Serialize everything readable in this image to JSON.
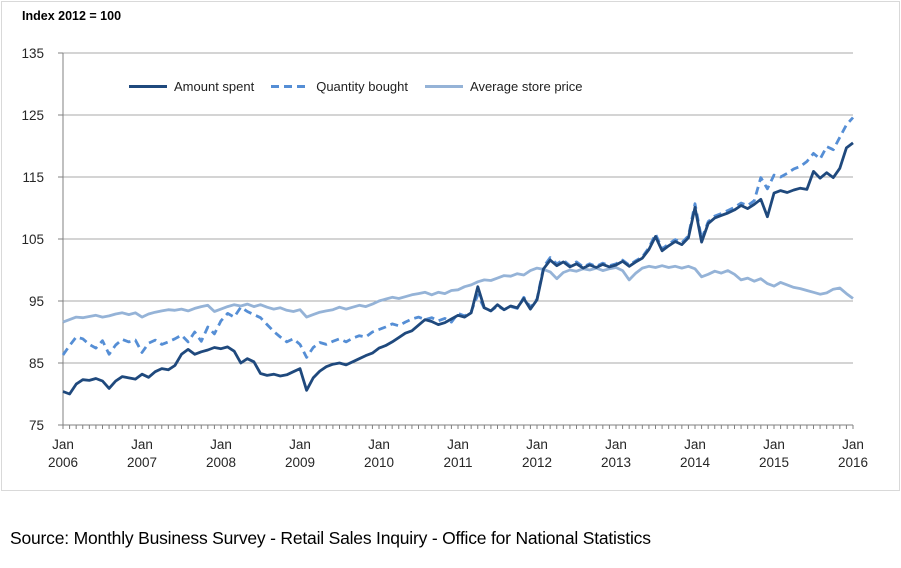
{
  "page": {
    "source_note": "Source: Monthly Business Survey - Retail Sales Inquiry - Office for National Statistics"
  },
  "chart_data": {
    "type": "line",
    "title": "Index 2012 = 100",
    "xlabel": "",
    "ylabel": "Index 2012 = 100",
    "ylim": [
      75,
      135
    ],
    "y_tick_step": 10,
    "grid": "horizontal",
    "legend_position": "top-inside",
    "frequency": "monthly",
    "x_month_label": "Jan",
    "x_tick_years": [
      2006,
      2007,
      2008,
      2009,
      2010,
      2011,
      2012,
      2013,
      2014,
      2015,
      2016
    ],
    "axis_color": "#808080",
    "grid_color": "#a9a9a9",
    "tick_label_color": "#262626",
    "series": [
      {
        "name": "Average store price",
        "color": "#95B3D7",
        "style": "solid",
        "values": [
          91.6,
          92.0,
          92.4,
          92.3,
          92.5,
          92.7,
          92.4,
          92.6,
          92.9,
          93.1,
          92.8,
          93.1,
          92.4,
          92.9,
          93.2,
          93.4,
          93.6,
          93.5,
          93.7,
          93.4,
          93.8,
          94.1,
          94.3,
          93.3,
          93.7,
          94.1,
          94.4,
          94.2,
          94.5,
          94.1,
          94.4,
          94.0,
          93.7,
          93.9,
          93.5,
          93.3,
          93.6,
          92.4,
          92.8,
          93.2,
          93.4,
          93.6,
          94.0,
          93.7,
          94.0,
          94.3,
          94.1,
          94.5,
          95.0,
          95.3,
          95.6,
          95.4,
          95.7,
          96.0,
          96.2,
          96.4,
          96.0,
          96.4,
          96.2,
          96.7,
          96.8,
          97.3,
          97.6,
          98.1,
          98.4,
          98.3,
          98.7,
          99.1,
          99.0,
          99.4,
          99.2,
          99.9,
          100.3,
          100.1,
          99.7,
          98.6,
          99.6,
          100.0,
          99.8,
          100.2,
          100.0,
          100.3,
          99.9,
          100.2,
          100.4,
          99.9,
          98.4,
          99.5,
          100.3,
          100.6,
          100.4,
          100.7,
          100.4,
          100.6,
          100.3,
          100.6,
          100.2,
          98.9,
          99.3,
          99.8,
          99.5,
          99.9,
          99.3,
          98.4,
          98.7,
          98.2,
          98.6,
          97.8,
          97.4,
          98.0,
          97.6,
          97.2,
          97.0,
          96.7,
          96.4,
          96.1,
          96.3,
          96.9,
          97.1,
          96.2,
          95.4
        ]
      },
      {
        "name": "Quantity bought",
        "color": "#558ED5",
        "style": "dashed",
        "values": [
          86.3,
          87.8,
          89.2,
          88.9,
          88.0,
          87.4,
          88.6,
          86.4,
          87.9,
          88.8,
          88.4,
          88.7,
          86.7,
          88.2,
          88.7,
          88.0,
          88.4,
          88.9,
          89.5,
          88.4,
          90.0,
          88.5,
          90.8,
          89.7,
          91.8,
          93.0,
          92.4,
          94.0,
          93.3,
          92.8,
          92.3,
          91.2,
          90.1,
          89.2,
          88.4,
          88.9,
          88.0,
          85.9,
          87.5,
          88.3,
          88.0,
          88.5,
          88.9,
          88.4,
          89.0,
          89.4,
          89.2,
          90.0,
          90.4,
          90.8,
          91.3,
          91.0,
          91.6,
          92.1,
          92.4,
          92.0,
          92.3,
          91.8,
          92.2,
          91.6,
          93.0,
          92.6,
          93.3,
          96.0,
          93.8,
          93.4,
          94.2,
          93.6,
          94.1,
          93.8,
          95.6,
          94.0,
          95.3,
          100.5,
          102.0,
          101.0,
          101.6,
          100.7,
          101.3,
          100.5,
          101.0,
          100.6,
          101.1,
          100.7,
          101.0,
          101.6,
          100.8,
          101.5,
          102.1,
          103.6,
          105.8,
          103.4,
          104.2,
          104.9,
          104.4,
          105.5,
          110.7,
          105.0,
          107.8,
          108.7,
          109.1,
          109.6,
          110.1,
          110.8,
          110.4,
          111.2,
          114.9,
          113.1,
          115.3,
          115.0,
          115.6,
          116.3,
          116.7,
          117.5,
          118.8,
          117.9,
          119.9,
          119.4,
          121.4,
          123.4,
          124.6
        ]
      },
      {
        "name": "Amount spent",
        "color": "#1F497D",
        "style": "solid",
        "values": [
          80.4,
          80.0,
          81.6,
          82.3,
          82.2,
          82.5,
          82.1,
          80.9,
          82.1,
          82.8,
          82.6,
          82.4,
          83.2,
          82.7,
          83.6,
          84.1,
          83.9,
          84.6,
          86.4,
          87.2,
          86.4,
          86.8,
          87.1,
          87.5,
          87.3,
          87.6,
          86.9,
          85.0,
          85.7,
          85.2,
          83.3,
          83.0,
          83.2,
          82.9,
          83.1,
          83.6,
          84.1,
          80.6,
          82.6,
          83.7,
          84.4,
          84.8,
          85.0,
          84.7,
          85.2,
          85.7,
          86.2,
          86.6,
          87.4,
          87.8,
          88.4,
          89.1,
          89.8,
          90.2,
          91.1,
          92.0,
          91.7,
          91.2,
          91.5,
          92.1,
          92.7,
          92.4,
          93.1,
          97.3,
          93.9,
          93.4,
          94.4,
          93.6,
          94.2,
          93.9,
          95.4,
          93.7,
          95.2,
          100.2,
          101.6,
          100.7,
          101.3,
          100.5,
          101.0,
          100.3,
          100.8,
          100.4,
          100.9,
          100.5,
          100.8,
          101.4,
          100.6,
          101.3,
          101.9,
          103.3,
          105.4,
          103.1,
          103.9,
          104.6,
          104.1,
          105.2,
          110.1,
          104.5,
          107.5,
          108.4,
          108.8,
          109.2,
          109.7,
          110.4,
          109.9,
          110.6,
          111.4,
          108.6,
          112.4,
          112.8,
          112.5,
          112.9,
          113.2,
          113.0,
          115.9,
          114.8,
          115.7,
          114.9,
          116.4,
          119.7,
          120.5
        ]
      }
    ],
    "legend_order": [
      2,
      1,
      0
    ]
  }
}
